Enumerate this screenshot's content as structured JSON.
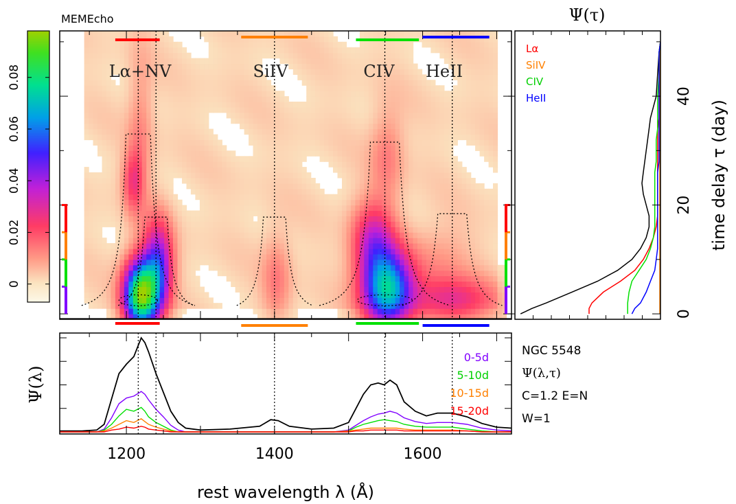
{
  "header": {
    "program": "MEMEcho",
    "psi_tau_label": "Ψ(τ)"
  },
  "colorbar": {
    "ticks": [
      "0",
      "0.02",
      "0.04",
      "0.06",
      "0.08"
    ],
    "tick_values": [
      0,
      0.02,
      0.04,
      0.06,
      0.08
    ],
    "range": [
      -0.007,
      0.098
    ]
  },
  "line_labels": [
    "Lα+NV",
    "SiIV",
    "CIV",
    "HeII"
  ],
  "legend_tau": [
    {
      "label": "Lα",
      "color": "#ff0000"
    },
    {
      "label": "SiIV",
      "color": "#ff8000"
    },
    {
      "label": "CIV",
      "color": "#00e000"
    },
    {
      "label": "HeII",
      "color": "#0000ff"
    }
  ],
  "legend_lambda": [
    {
      "label": "0-5d",
      "color": "#8000ff"
    },
    {
      "label": "5-10d",
      "color": "#00e000"
    },
    {
      "label": "10-15d",
      "color": "#ff8000"
    },
    {
      "label": "15-20d",
      "color": "#ff0000"
    }
  ],
  "info": [
    "NGC 5548",
    "Ψ(λ,τ)",
    "C=1.2 E=N",
    "W=1"
  ],
  "axes": {
    "xlabel": "rest wavelength λ (Å)",
    "ylabel_right": "time delay τ (day)",
    "ylabel_bottom": "Ψ(λ)",
    "xticks": [
      "1200",
      "1400",
      "1600"
    ],
    "yticks_right": [
      "0",
      "20",
      "40"
    ]
  },
  "chart_data": {
    "type": "heatmap",
    "title": "MEMEcho",
    "x_range": [
      1110,
      1720
    ],
    "tau_range": [
      -1,
      52
    ],
    "line_centers": [
      1216,
      1240,
      1400,
      1549,
      1640
    ],
    "delay_map_components": [
      {
        "line": "Lα+NV",
        "lambda": 1216,
        "tau": 3,
        "sigma_lambda": 16,
        "sigma_tau": 4.5,
        "amp": 0.09
      },
      {
        "line": "Lα+NV",
        "lambda": 1240,
        "tau": 8,
        "sigma_lambda": 14,
        "sigma_tau": 6,
        "amp": 0.045
      },
      {
        "line": "Lα+NV",
        "lambda": 1206,
        "tau": 24,
        "sigma_lambda": 10,
        "sigma_tau": 4,
        "amp": 0.02
      },
      {
        "line": "Lα+NV",
        "lambda": 1216,
        "tau": 34,
        "sigma_lambda": 12,
        "sigma_tau": 10,
        "amp": 0.01
      },
      {
        "line": "SiIV",
        "lambda": 1400,
        "tau": 6,
        "sigma_lambda": 14,
        "sigma_tau": 6,
        "amp": 0.012
      },
      {
        "line": "CIV",
        "lambda": 1549,
        "tau": 4,
        "sigma_lambda": 24,
        "sigma_tau": 5,
        "amp": 0.07
      },
      {
        "line": "CIV",
        "lambda": 1530,
        "tau": 13,
        "sigma_lambda": 20,
        "sigma_tau": 5,
        "amp": 0.03
      },
      {
        "line": "CIV",
        "lambda": 1549,
        "tau": 29,
        "sigma_lambda": 16,
        "sigma_tau": 6,
        "amp": 0.012
      },
      {
        "line": "HeII",
        "lambda": 1640,
        "tau": 2,
        "sigma_lambda": 40,
        "sigma_tau": 3,
        "amp": 0.025
      },
      {
        "line": "HeII",
        "lambda": 1620,
        "tau": 9,
        "sigma_lambda": 30,
        "sigma_tau": 5,
        "amp": 0.008
      }
    ],
    "psi_lambda": {
      "lambda": [
        1110,
        1140,
        1160,
        1170,
        1180,
        1190,
        1200,
        1210,
        1220,
        1225,
        1230,
        1240,
        1250,
        1260,
        1270,
        1280,
        1300,
        1340,
        1380,
        1395,
        1405,
        1420,
        1450,
        1480,
        1500,
        1510,
        1520,
        1530,
        1540,
        1548,
        1556,
        1565,
        1575,
        1590,
        1605,
        1620,
        1640,
        1660,
        1680,
        1700,
        1720
      ],
      "series": [
        {
          "name": "total",
          "color": "#000000",
          "values": [
            0.01,
            0.01,
            0.02,
            0.08,
            0.35,
            0.62,
            0.72,
            0.8,
            1.0,
            0.95,
            0.85,
            0.62,
            0.42,
            0.22,
            0.1,
            0.04,
            0.02,
            0.03,
            0.06,
            0.13,
            0.12,
            0.06,
            0.03,
            0.04,
            0.1,
            0.25,
            0.4,
            0.5,
            0.52,
            0.5,
            0.55,
            0.5,
            0.32,
            0.22,
            0.17,
            0.2,
            0.2,
            0.16,
            0.09,
            0.05,
            0.04
          ]
        },
        {
          "name": "0-5d",
          "color": "#8000ff",
          "values": [
            0,
            0,
            0,
            0.03,
            0.15,
            0.3,
            0.36,
            0.38,
            0.43,
            0.4,
            0.34,
            0.24,
            0.16,
            0.07,
            0.02,
            0,
            0,
            0,
            0,
            0,
            0,
            0,
            0,
            0,
            0.02,
            0.07,
            0.12,
            0.16,
            0.19,
            0.2,
            0.22,
            0.2,
            0.15,
            0.11,
            0.09,
            0.1,
            0.1,
            0.08,
            0.04,
            0.02,
            0.01
          ]
        },
        {
          "name": "5-10d",
          "color": "#00e000",
          "values": [
            0,
            0,
            0,
            0.02,
            0.08,
            0.17,
            0.24,
            0.22,
            0.26,
            0.22,
            0.16,
            0.1,
            0.06,
            0.02,
            0,
            0,
            0,
            0,
            0,
            0,
            0,
            0,
            0,
            0,
            0.01,
            0.05,
            0.08,
            0.1,
            0.12,
            0.13,
            0.12,
            0.11,
            0.08,
            0.06,
            0.05,
            0.05,
            0.05,
            0.03,
            0.01,
            0,
            0
          ]
        },
        {
          "name": "10-15d",
          "color": "#ff8000",
          "values": [
            0,
            0,
            0,
            0.01,
            0.04,
            0.08,
            0.12,
            0.1,
            0.14,
            0.11,
            0.08,
            0.05,
            0.03,
            0.01,
            0,
            0,
            0,
            0,
            0,
            0,
            0,
            0,
            0,
            0,
            0.01,
            0.02,
            0.03,
            0.04,
            0.04,
            0.04,
            0.04,
            0.04,
            0.03,
            0.02,
            0.02,
            0.02,
            0.02,
            0.01,
            0,
            0,
            0
          ]
        },
        {
          "name": "15-20d",
          "color": "#ff0000",
          "values": [
            0,
            0,
            0,
            0,
            0.02,
            0.03,
            0.05,
            0.04,
            0.06,
            0.05,
            0.03,
            0.02,
            0.01,
            0,
            0,
            0,
            0,
            0,
            0,
            0,
            0,
            0,
            0,
            0,
            0,
            0.01,
            0.01,
            0.02,
            0.02,
            0.02,
            0.02,
            0.02,
            0.01,
            0.01,
            0.01,
            0.01,
            0.01,
            0.01,
            0,
            0,
            0
          ]
        }
      ]
    },
    "psi_tau": {
      "tau": [
        0,
        1,
        2,
        4,
        6,
        8,
        10,
        12,
        14,
        16,
        18,
        20,
        22,
        24,
        26,
        28,
        30,
        32,
        34,
        36,
        38,
        40,
        44,
        48,
        50
      ],
      "series": [
        {
          "name": "total",
          "color": "#000000",
          "values": [
            0.02,
            0.1,
            0.2,
            0.38,
            0.56,
            0.7,
            0.8,
            0.86,
            0.9,
            0.92,
            0.92,
            0.9,
            0.88,
            0.87,
            0.88,
            0.89,
            0.9,
            0.91,
            0.92,
            0.93,
            0.95,
            0.97,
            0.98,
            0.99,
            1.0
          ]
        },
        {
          "name": "Lα",
          "color": "#ff0000",
          "values": [
            0.5,
            0.5,
            0.52,
            0.6,
            0.72,
            0.82,
            0.88,
            0.92,
            0.95,
            0.97,
            0.98,
            0.98,
            0.98,
            0.98,
            0.98,
            0.98,
            0.98,
            0.98,
            0.98,
            0.99,
            0.99,
            0.99,
            0.99,
            0.99,
            1.0
          ]
        },
        {
          "name": "SiIV",
          "color": "#ff8000",
          "values": [
            0.995,
            0.995,
            0.995,
            0.995,
            0.995,
            0.995,
            0.995,
            0.995,
            0.995,
            0.995,
            0.995,
            0.995,
            0.995,
            0.995,
            0.995,
            0.995,
            0.995,
            0.995,
            0.995,
            0.995,
            0.995,
            0.995,
            0.995,
            0.995,
            1.0
          ]
        },
        {
          "name": "CIV",
          "color": "#00e000",
          "values": [
            0.77,
            0.77,
            0.77,
            0.78,
            0.8,
            0.85,
            0.9,
            0.93,
            0.95,
            0.96,
            0.96,
            0.96,
            0.96,
            0.96,
            0.96,
            0.97,
            0.97,
            0.97,
            0.98,
            0.98,
            0.98,
            0.98,
            0.99,
            0.99,
            1.0
          ]
        },
        {
          "name": "HeII",
          "color": "#0000ff",
          "values": [
            0.8,
            0.82,
            0.86,
            0.9,
            0.93,
            0.96,
            0.97,
            0.98,
            0.98,
            0.98,
            0.98,
            0.98,
            0.98,
            0.98,
            0.98,
            0.99,
            0.99,
            0.99,
            0.99,
            0.99,
            0.99,
            0.99,
            0.99,
            0.99,
            1.0
          ]
        }
      ]
    }
  }
}
